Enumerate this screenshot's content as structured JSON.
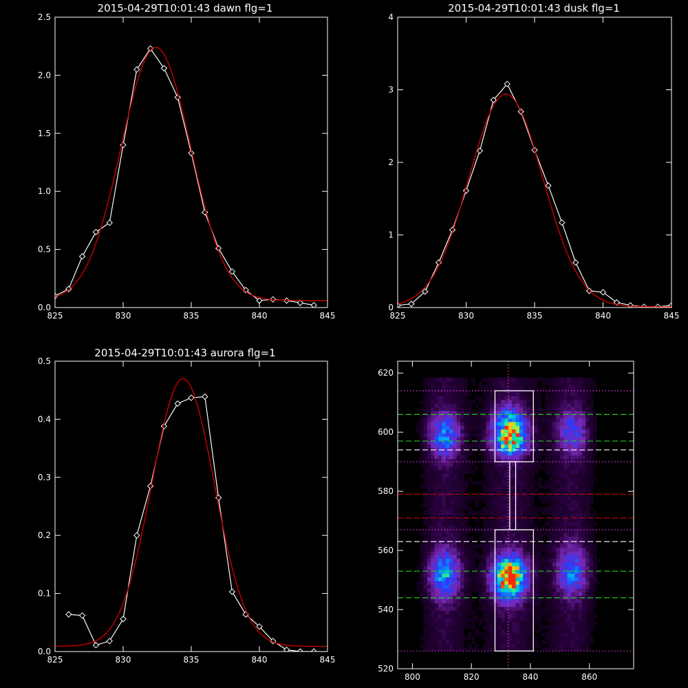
{
  "chart_data": [
    {
      "type": "line",
      "title": "2015-04-29T10:01:43 dawn flg=1",
      "xlim": [
        825,
        845
      ],
      "ylim": [
        0,
        2.5
      ],
      "xticks": [
        "825",
        "830",
        "835",
        "840",
        "845"
      ],
      "yticks": [
        "0.0",
        "0.5",
        "1.0",
        "1.5",
        "2.0",
        "2.5"
      ],
      "series": [
        {
          "role": "data",
          "color": "#ffffff",
          "marker": "diamond",
          "x": [
            825,
            826,
            827,
            828,
            829,
            830,
            831,
            832,
            833,
            834,
            835,
            836,
            837,
            838,
            839,
            840,
            841,
            842,
            843,
            844
          ],
          "y": [
            0.1,
            0.16,
            0.44,
            0.65,
            0.73,
            1.4,
            2.05,
            2.23,
            2.06,
            1.81,
            1.33,
            0.82,
            0.51,
            0.31,
            0.15,
            0.06,
            0.07,
            0.06,
            0.04,
            0.02
          ]
        },
        {
          "role": "fit",
          "color": "#cc0000",
          "gaussian": {
            "amplitude": 2.18,
            "center": 832.4,
            "sigma": 2.55,
            "offset": 0.06
          }
        }
      ]
    },
    {
      "type": "line",
      "title": "2015-04-29T10:01:43 dusk flg=1",
      "xlim": [
        825,
        845
      ],
      "ylim": [
        0,
        4
      ],
      "xticks": [
        "825",
        "830",
        "835",
        "840",
        "845"
      ],
      "yticks": [
        "0",
        "1",
        "2",
        "3",
        "4"
      ],
      "series": [
        {
          "role": "data",
          "color": "#ffffff",
          "marker": "diamond",
          "x": [
            825,
            826,
            827,
            828,
            829,
            830,
            831,
            832,
            833,
            834,
            835,
            836,
            837,
            838,
            839,
            840,
            841,
            842,
            843,
            844,
            845
          ],
          "y": [
            0.03,
            0.05,
            0.22,
            0.62,
            1.07,
            1.61,
            2.16,
            2.86,
            3.08,
            2.7,
            2.17,
            1.68,
            1.17,
            0.62,
            0.23,
            0.21,
            0.07,
            0.03,
            0.01,
            0.01,
            0.03
          ]
        },
        {
          "role": "fit",
          "color": "#cc0000",
          "gaussian": {
            "amplitude": 2.93,
            "center": 832.9,
            "sigma": 2.7,
            "offset": 0.01
          }
        }
      ]
    },
    {
      "type": "line",
      "title": "2015-04-29T10:01:43 aurora flg=1",
      "xlim": [
        825,
        845
      ],
      "ylim": [
        0,
        0.5
      ],
      "xticks": [
        "825",
        "830",
        "835",
        "840",
        "845"
      ],
      "yticks": [
        "0.0",
        "0.1",
        "0.2",
        "0.3",
        "0.4",
        "0.5"
      ],
      "series": [
        {
          "role": "data",
          "color": "#ffffff",
          "marker": "diamond",
          "x": [
            826,
            827,
            828,
            829,
            830,
            831,
            832,
            833,
            834,
            835,
            836,
            837,
            838,
            839,
            840,
            841,
            842,
            843,
            844
          ],
          "y": [
            0.064,
            0.062,
            0.011,
            0.018,
            0.056,
            0.2,
            0.285,
            0.388,
            0.427,
            0.437,
            0.439,
            0.265,
            0.103,
            0.064,
            0.043,
            0.018,
            0.003,
            0.0,
            0.0
          ]
        },
        {
          "role": "fit",
          "color": "#cc0000",
          "gaussian": {
            "amplitude": 0.461,
            "center": 834.4,
            "sigma": 2.3,
            "offset": 0.009
          }
        }
      ]
    },
    {
      "type": "heatmap",
      "title": "",
      "xlim": [
        795,
        875
      ],
      "ylim": [
        520,
        624
      ],
      "xticks": [
        "800",
        "820",
        "840",
        "860"
      ],
      "yticks": [
        "520",
        "540",
        "560",
        "580",
        "600",
        "620"
      ],
      "columns": [
        {
          "x": 811,
          "width": 3.5
        },
        {
          "x": 833,
          "width": 4
        },
        {
          "x": 854,
          "width": 3.5
        }
      ],
      "blobs": [
        {
          "column": 0,
          "y": 599,
          "spread": 5,
          "peak": 0.5
        },
        {
          "column": 1,
          "y": 602,
          "spread": 4.5,
          "peak": 0.7
        },
        {
          "column": 1,
          "y": 596,
          "spread": 3,
          "peak": 0.55
        },
        {
          "column": 2,
          "y": 600,
          "spread": 5,
          "peak": 0.35
        },
        {
          "column": 0,
          "y": 552,
          "spread": 5.5,
          "peak": 0.55
        },
        {
          "column": 1,
          "y": 551,
          "spread": 5,
          "peak": 1.0
        },
        {
          "column": 2,
          "y": 553,
          "spread": 5.5,
          "peak": 0.45
        }
      ],
      "rectangles": [
        {
          "x0": 828,
          "x1": 841,
          "y0": 590,
          "y1": 614,
          "color": "#ffffff"
        },
        {
          "x0": 833,
          "x1": 835,
          "y0": 567,
          "y1": 590,
          "color": "#ffffff"
        },
        {
          "x0": 828,
          "x1": 841,
          "y0": 526,
          "y1": 567,
          "color": "#ffffff"
        }
      ],
      "hlines": [
        {
          "y": 614,
          "color": "#e040e0",
          "style": "dotted"
        },
        {
          "y": 606,
          "color": "#22cc22",
          "style": "dashed"
        },
        {
          "y": 597,
          "color": "#22cc22",
          "style": "dashed"
        },
        {
          "y": 594,
          "color": "#ffffff",
          "style": "dashed"
        },
        {
          "y": 590,
          "color": "#e040e0",
          "style": "dotted"
        },
        {
          "y": 579,
          "color": "#cc0000",
          "style": "dashed"
        },
        {
          "y": 571,
          "color": "#cc0000",
          "style": "dashed"
        },
        {
          "y": 567,
          "color": "#e040e0",
          "style": "dotted"
        },
        {
          "y": 563,
          "color": "#ffffff",
          "style": "dashed"
        },
        {
          "y": 553,
          "color": "#22cc22",
          "style": "dashed"
        },
        {
          "y": 544,
          "color": "#22cc22",
          "style": "dashed"
        },
        {
          "y": 526,
          "color": "#e040e0",
          "style": "dotted"
        }
      ],
      "vlines": [
        {
          "x": 832.5,
          "color": "#e040e0",
          "style": "dotted"
        }
      ]
    }
  ]
}
